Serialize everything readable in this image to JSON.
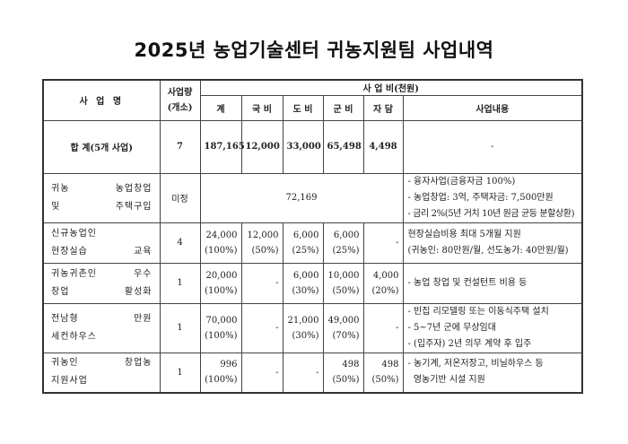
{
  "title": "2025년 농업기술센터 귀농지원팀 사업내역",
  "header": {
    "name": "사 업 명",
    "qty_line1": "사업량",
    "qty_line2": "(개소)",
    "budget": "사 업 비(천원)",
    "total": "계",
    "national": "국 비",
    "provincial": "도 비",
    "county": "군 비",
    "self": "자 담",
    "content": "사업내용"
  },
  "summary": {
    "name": "합 계(5개 사업)",
    "qty": "7",
    "total": "187,165",
    "national": "12,000",
    "provincial": "33,000",
    "county": "65,498",
    "self": "4,498",
    "content": "-"
  },
  "rows": [
    {
      "name_line1": "귀농 농업창업",
      "name_line2": "및 주택구입",
      "qty": "미정",
      "merged_amount": "72,169",
      "content": [
        "- 융자사업(금융자금 100%)",
        "- 농업창업: 3억, 주택자금: 7,500만원",
        "- 금리 2%(5년 거치 10년 원금 균등 분할상환)"
      ]
    },
    {
      "name_line1": "신규농업인",
      "name_line2": "현장실습 교육",
      "qty": "4",
      "total": "24,000",
      "total_pct": "(100%)",
      "national": "12,000",
      "national_pct": "(50%)",
      "provincial": "6,000",
      "provincial_pct": "(25%)",
      "county": "6,000",
      "county_pct": "(25%)",
      "self": "-",
      "content": [
        "현장실습비용 최대 5개월 지원",
        "(귀농인: 80만원/월, 선도농가: 40만원/월)"
      ]
    },
    {
      "name_line1": "귀농귀촌인 우수",
      "name_line2": "창업 활성화",
      "qty": "1",
      "total": "20,000",
      "total_pct": "(100%)",
      "national": "-",
      "provincial": "6,000",
      "provincial_pct": "(30%)",
      "county": "10,000",
      "county_pct": "(50%)",
      "self": "4,000",
      "self_pct": "(20%)",
      "content": [
        "- 농업 창업 및 컨설턴트 비용 등"
      ]
    },
    {
      "name_line1": "전남형 만원",
      "name_line2": "세컨하우스",
      "qty": "1",
      "total": "70,000",
      "total_pct": "(100%)",
      "national": "-",
      "provincial": "21,000",
      "provincial_pct": "(30%)",
      "county": "49,000",
      "county_pct": "(70%)",
      "self": "-",
      "content": [
        "- 빈집 리모델링 또는 이동식주택 설치",
        "- 5~7년 군에 무상임대",
        "- (입주자) 2년 의무 계약 후 입주"
      ]
    },
    {
      "name_line1": "귀농인 창업농",
      "name_line2": "지원사업",
      "qty": "1",
      "total": "996",
      "total_pct": "(100%)",
      "national": "-",
      "provincial": "-",
      "county": "498",
      "county_pct": "(50%)",
      "self": "498",
      "self_pct": "(50%)",
      "content": [
        "- 농기계, 저온저장고, 비닐하우스 등",
        "  영농기반 시설 지원"
      ]
    }
  ]
}
